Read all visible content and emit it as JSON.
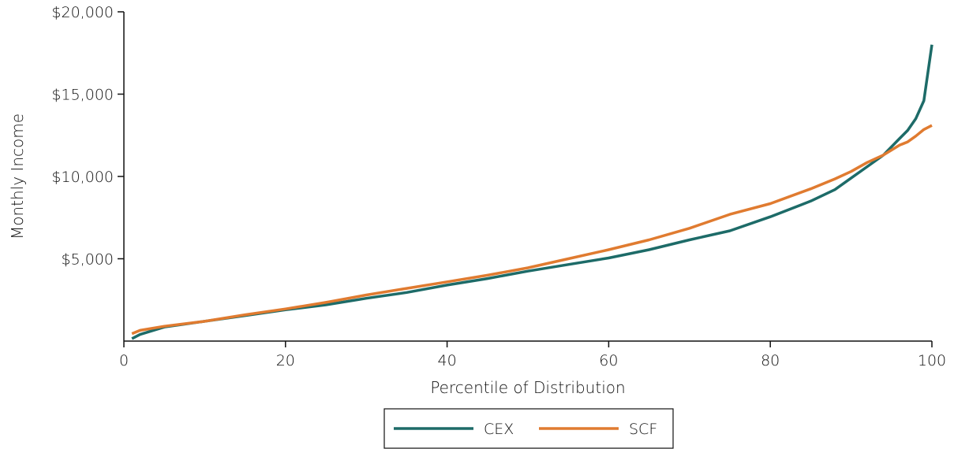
{
  "chart_data": {
    "type": "line",
    "xlabel": "Percentile of Distribution",
    "ylabel": "Monthly Income",
    "xlim": [
      0,
      100
    ],
    "ylim": [
      0,
      20000
    ],
    "x_ticks": [
      0,
      20,
      40,
      60,
      80,
      100
    ],
    "x_tick_labels": [
      "0",
      "20",
      "40",
      "60",
      "80",
      "100"
    ],
    "y_ticks": [
      5000,
      10000,
      15000,
      20000
    ],
    "y_tick_labels": [
      "$5,000",
      "$10,000",
      "$15,000",
      "$20,000"
    ],
    "grid": false,
    "legend_position": "bottom",
    "series": [
      {
        "name": "CEX",
        "color": "#1d6b68",
        "x": [
          1,
          2,
          5,
          10,
          15,
          20,
          25,
          30,
          35,
          40,
          45,
          50,
          55,
          60,
          65,
          70,
          75,
          80,
          85,
          88,
          90,
          92,
          94,
          96,
          97,
          98,
          99,
          100
        ],
        "y": [
          150,
          400,
          850,
          1200,
          1550,
          1900,
          2200,
          2600,
          2950,
          3400,
          3800,
          4250,
          4650,
          5050,
          5550,
          6150,
          6700,
          7550,
          8500,
          9200,
          9900,
          10600,
          11300,
          12300,
          12800,
          13500,
          14600,
          18000
        ]
      },
      {
        "name": "SCF",
        "color": "#e07b30",
        "x": [
          1,
          2,
          5,
          10,
          15,
          20,
          25,
          30,
          35,
          40,
          45,
          50,
          55,
          60,
          65,
          70,
          75,
          80,
          85,
          88,
          90,
          92,
          94,
          96,
          97,
          98,
          99,
          100
        ],
        "y": [
          450,
          650,
          900,
          1200,
          1600,
          1950,
          2350,
          2800,
          3200,
          3600,
          4000,
          4450,
          5000,
          5550,
          6150,
          6850,
          7700,
          8350,
          9250,
          9850,
          10300,
          10850,
          11300,
          11900,
          12100,
          12450,
          12850,
          13100
        ]
      }
    ]
  }
}
